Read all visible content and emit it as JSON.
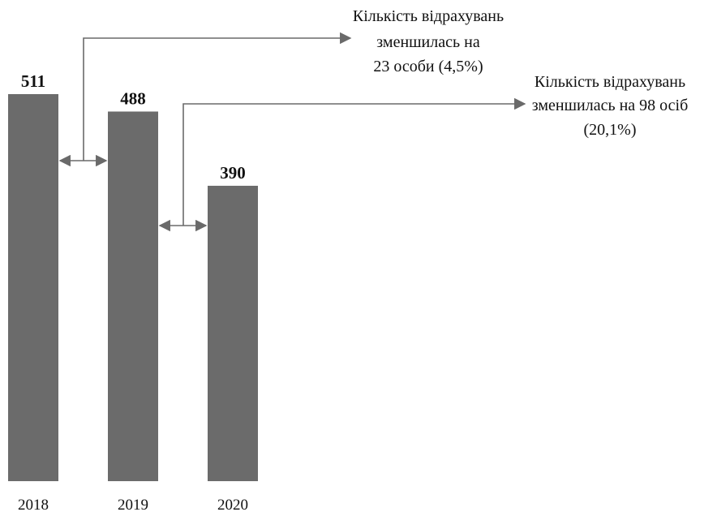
{
  "chart_data": {
    "type": "bar",
    "categories": [
      "2018",
      "2019",
      "2020"
    ],
    "values": [
      511,
      488,
      390
    ],
    "title": "",
    "xlabel": "",
    "ylabel": "",
    "ylim": [
      0,
      511
    ],
    "grid": false,
    "bar_color": "#6b6b6b",
    "annotations": [
      {
        "from": "2018",
        "to": "2019",
        "lines": [
          "Кількість відрахувань",
          "зменшилась на",
          "23 особи (4,5%)"
        ]
      },
      {
        "from": "2019",
        "to": "2020",
        "lines": [
          "Кількість відрахувань",
          "зменшилась на 98 осіб",
          "(20,1%)"
        ]
      }
    ]
  }
}
